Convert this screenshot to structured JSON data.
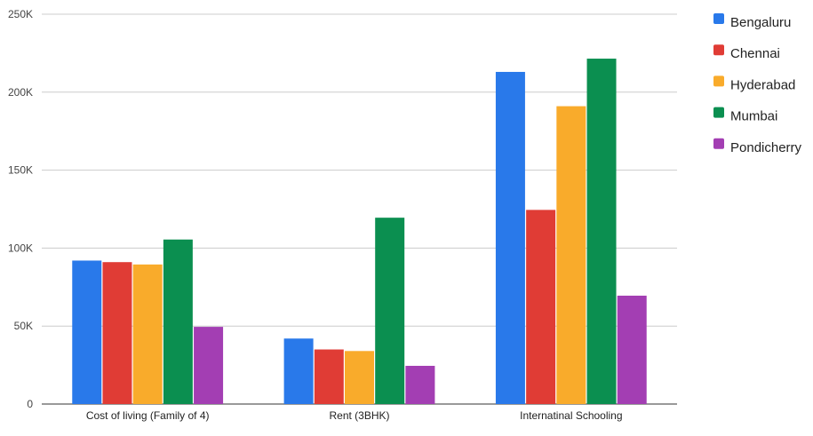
{
  "chart_data": {
    "type": "bar",
    "categories": [
      "Cost of living (Family of 4)",
      "Rent (3BHK)",
      "Internatinal Schooling"
    ],
    "series": [
      {
        "name": "Bengaluru",
        "color": "#2979ea",
        "values": [
          92000,
          42000,
          213000
        ]
      },
      {
        "name": "Chennai",
        "color": "#e03c35",
        "values": [
          91000,
          35000,
          124500
        ]
      },
      {
        "name": "Hyderabad",
        "color": "#f9ab2b",
        "values": [
          89500,
          34000,
          191000
        ]
      },
      {
        "name": "Mumbai",
        "color": "#0b8f50",
        "values": [
          105500,
          119500,
          221500
        ]
      },
      {
        "name": "Pondicherry",
        "color": "#a33eb3",
        "values": [
          49500,
          24500,
          69500
        ]
      }
    ],
    "yticks": [
      "0",
      "50K",
      "100K",
      "150K",
      "200K",
      "250K"
    ],
    "ylim": [
      0,
      250000
    ],
    "grid": true,
    "legend_position": "right",
    "title": "",
    "xlabel": "",
    "ylabel": ""
  }
}
